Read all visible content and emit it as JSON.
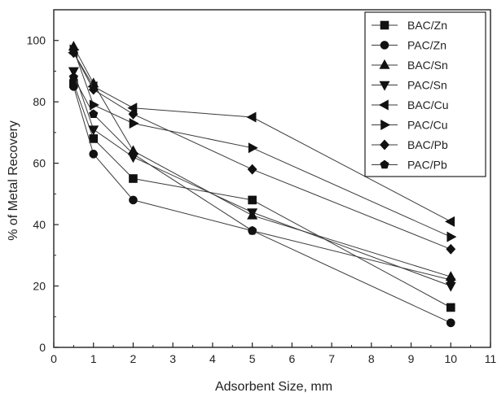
{
  "chart_data": {
    "type": "line",
    "xlabel": "Adsorbent Size, mm",
    "ylabel": "% of Metal Recovery",
    "xlim": [
      0,
      11
    ],
    "ylim": [
      0,
      110
    ],
    "xticks": [
      0,
      1,
      2,
      3,
      4,
      5,
      6,
      7,
      8,
      9,
      10,
      11
    ],
    "yticks": [
      0,
      20,
      40,
      60,
      80,
      100
    ],
    "grid": false,
    "legend_position": "top-right",
    "series": [
      {
        "name": "BAC/Zn",
        "marker": "square",
        "x": [
          0.5,
          1,
          2,
          5,
          10
        ],
        "y": [
          86,
          68,
          55,
          48,
          13
        ]
      },
      {
        "name": "PAC/Zn",
        "marker": "circle",
        "x": [
          0.5,
          1,
          2,
          5,
          10
        ],
        "y": [
          85,
          63,
          48,
          38,
          8
        ]
      },
      {
        "name": "BAC/Sn",
        "marker": "triangle-up",
        "x": [
          0.5,
          1,
          2,
          5,
          10
        ],
        "y": [
          98,
          86,
          64,
          43,
          23
        ]
      },
      {
        "name": "PAC/Sn",
        "marker": "triangle-down",
        "x": [
          0.5,
          1,
          2,
          5,
          10
        ],
        "y": [
          90,
          71,
          62,
          44,
          20
        ]
      },
      {
        "name": "BAC/Cu",
        "marker": "triangle-left",
        "x": [
          0.5,
          1,
          2,
          5,
          10
        ],
        "y": [
          96,
          85,
          78,
          75,
          41
        ]
      },
      {
        "name": "PAC/Cu",
        "marker": "triangle-right",
        "x": [
          0.5,
          1,
          2,
          5,
          10
        ],
        "y": [
          97,
          79,
          73,
          65,
          36
        ]
      },
      {
        "name": "BAC/Pb",
        "marker": "diamond",
        "x": [
          0.5,
          1,
          2,
          5,
          10
        ],
        "y": [
          96,
          84,
          76,
          58,
          32
        ]
      },
      {
        "name": "PAC/Pb",
        "marker": "pentagon",
        "x": [
          0.5,
          1,
          2,
          5,
          10
        ],
        "y": [
          88,
          76,
          63,
          38,
          22
        ]
      }
    ],
    "colors": {
      "line": "#3a3a3a",
      "marker": "#111111",
      "axis": "#222222"
    }
  }
}
